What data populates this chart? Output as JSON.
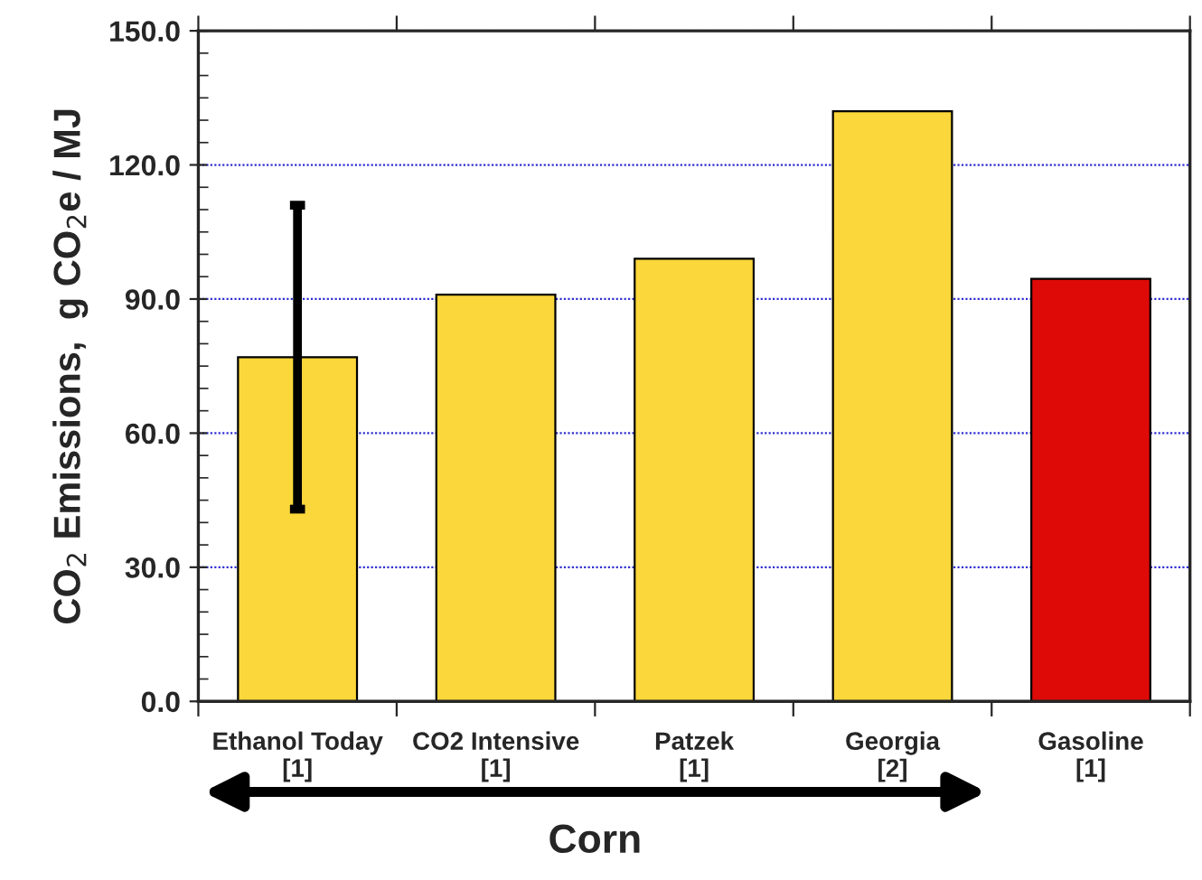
{
  "chart_data": {
    "type": "bar",
    "ylabel": "CO$_{2}$ Emissions,  g CO$_{2}$e / MJ",
    "categories": [
      "Ethanol Today\n[1]",
      "CO2 Intensive\n[1]",
      "Patzek\n[1]",
      "Georgia\n[2]",
      "Gasoline\n[1]"
    ],
    "values": [
      77,
      91,
      99,
      132,
      94.5
    ],
    "colors": [
      "#fcd73b",
      "#fcd73b",
      "#fcd73b",
      "#fcd73b",
      "#dd0a07"
    ],
    "errors": [
      [
        43,
        111
      ],
      null,
      null,
      null,
      null
    ],
    "ylim": [
      0,
      150
    ],
    "yticks": [
      {
        "value": 0,
        "label": "0.0"
      },
      {
        "value": 30,
        "label": "30.0"
      },
      {
        "value": 60,
        "label": "60.0"
      },
      {
        "value": 90,
        "label": "90.0"
      },
      {
        "value": 120,
        "label": "120.0"
      },
      {
        "value": 150,
        "label": "150.0"
      }
    ],
    "grid": "y",
    "annotations": [
      "Corn"
    ]
  }
}
